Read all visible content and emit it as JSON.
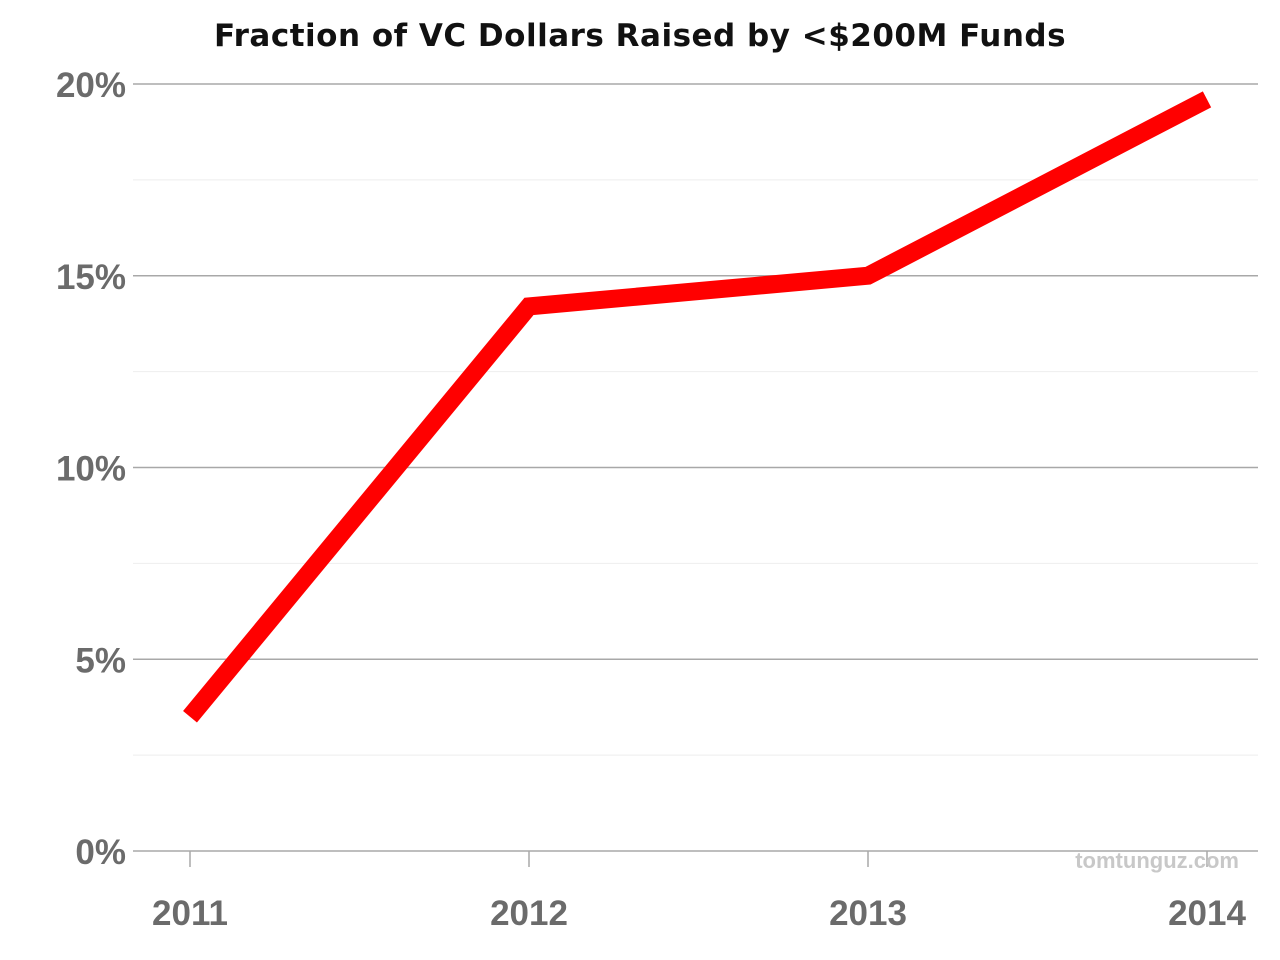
{
  "chart_data": {
    "type": "line",
    "title": "Fraction of VC Dollars Raised by <$200M Funds",
    "xlabel": "",
    "ylabel": "",
    "x": [
      "2011",
      "2012",
      "2013",
      "2014"
    ],
    "series": [
      {
        "values": [
          3.5,
          14.2,
          15.0,
          19.6
        ],
        "color": "#ff0000"
      }
    ],
    "ylim": [
      0,
      20
    ],
    "yticks": [
      0,
      5,
      10,
      15,
      20
    ],
    "ytick_labels": [
      "0%",
      "5%",
      "10%",
      "15%",
      "20%"
    ],
    "xtick_labels": [
      "2011",
      "2012",
      "2013",
      "2014"
    ],
    "grid": true,
    "legend": "none"
  },
  "watermark": "tomtunguz.com",
  "colors": {
    "line": "#ff0000",
    "major_grid": "#a8a8a8",
    "minor_grid": "#eeeeee",
    "tick_text": "#6b6b6b",
    "title_text": "#111111",
    "watermark": "#c8c8c8"
  }
}
